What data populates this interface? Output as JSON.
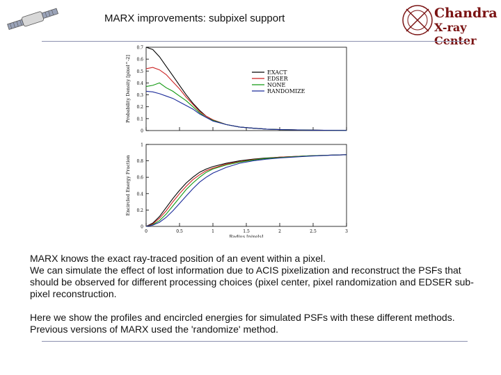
{
  "slide": {
    "title": "MARX improvements: subpixel support",
    "logo": {
      "line1": "Chandra",
      "line2": "X-ray Center"
    }
  },
  "body": {
    "paragraph1": "MARX knows the exact ray-traced position of an event within a pixel.\nWe can simulate the effect of lost information due to ACIS pixelization and reconstruct the PSFs that should be observed for different processing choices (pixel center, pixel randomization and EDSER sub-pixel reconstruction.",
    "paragraph2": "Here we show the profiles and encircled energies for simulated PSFs with these different methods.  Previous versions of MARX used the 'randomize' method."
  },
  "colors": {
    "rule": "#8a8fae",
    "logo_text": "#7a1313",
    "EXACT": "#000000",
    "EDSER": "#cc2222",
    "NONE": "#119911",
    "RANDOMIZE": "#1a2a99"
  },
  "chart_data": [
    {
      "type": "line",
      "ylabel": "Probability Density [pixel^-2]",
      "xlabel": "",
      "xlim": [
        0,
        3
      ],
      "ylim": [
        0,
        0.7
      ],
      "yticks": [
        "0",
        "0.1",
        "0.2",
        "0.3",
        "0.4",
        "0.5",
        "0.6",
        "0.7"
      ],
      "legend_position": "upper-right",
      "legend": [
        "EXACT",
        "EDSER",
        "NONE",
        "RANDOMIZE"
      ],
      "x": [
        0,
        0.1,
        0.2,
        0.3,
        0.4,
        0.5,
        0.6,
        0.7,
        0.8,
        0.9,
        1.0,
        1.2,
        1.4,
        1.6,
        1.8,
        2.0,
        2.4,
        2.8,
        3.0
      ],
      "series": [
        {
          "name": "EXACT",
          "values": [
            0.7,
            0.68,
            0.62,
            0.54,
            0.46,
            0.38,
            0.3,
            0.23,
            0.17,
            0.12,
            0.09,
            0.05,
            0.03,
            0.02,
            0.012,
            0.008,
            0.004,
            0.002,
            0.001
          ]
        },
        {
          "name": "EDSER",
          "values": [
            0.52,
            0.53,
            0.51,
            0.47,
            0.41,
            0.35,
            0.28,
            0.22,
            0.16,
            0.12,
            0.09,
            0.05,
            0.03,
            0.02,
            0.012,
            0.008,
            0.004,
            0.002,
            0.001
          ]
        },
        {
          "name": "NONE",
          "values": [
            0.37,
            0.38,
            0.4,
            0.36,
            0.33,
            0.29,
            0.25,
            0.2,
            0.15,
            0.11,
            0.085,
            0.05,
            0.03,
            0.02,
            0.012,
            0.008,
            0.004,
            0.002,
            0.001
          ]
        },
        {
          "name": "RANDOMIZE",
          "values": [
            0.33,
            0.325,
            0.31,
            0.29,
            0.27,
            0.24,
            0.21,
            0.18,
            0.14,
            0.11,
            0.08,
            0.05,
            0.03,
            0.02,
            0.012,
            0.008,
            0.004,
            0.002,
            0.001
          ]
        }
      ]
    },
    {
      "type": "line",
      "ylabel": "Encircled Energy Fraction",
      "xlabel": "Radius [pixels]",
      "xlim": [
        0,
        3
      ],
      "ylim": [
        0,
        1
      ],
      "xticks": [
        "0",
        "0.5",
        "1",
        "1.5",
        "2",
        "2.5",
        "3"
      ],
      "yticks": [
        "0",
        "0.2",
        "0.4",
        "0.6",
        "0.8",
        "1"
      ],
      "x": [
        0,
        0.1,
        0.2,
        0.3,
        0.4,
        0.5,
        0.6,
        0.7,
        0.8,
        0.9,
        1.0,
        1.2,
        1.4,
        1.6,
        1.8,
        2.0,
        2.4,
        2.8,
        3.0
      ],
      "series": [
        {
          "name": "EXACT",
          "values": [
            0,
            0.04,
            0.12,
            0.23,
            0.34,
            0.44,
            0.53,
            0.6,
            0.66,
            0.7,
            0.73,
            0.77,
            0.8,
            0.82,
            0.835,
            0.845,
            0.86,
            0.87,
            0.875
          ]
        },
        {
          "name": "EDSER",
          "values": [
            0,
            0.03,
            0.1,
            0.19,
            0.3,
            0.4,
            0.49,
            0.57,
            0.63,
            0.68,
            0.71,
            0.76,
            0.79,
            0.815,
            0.83,
            0.845,
            0.86,
            0.87,
            0.875
          ]
        },
        {
          "name": "NONE",
          "values": [
            0,
            0.02,
            0.07,
            0.15,
            0.25,
            0.35,
            0.45,
            0.53,
            0.6,
            0.66,
            0.7,
            0.75,
            0.785,
            0.81,
            0.83,
            0.84,
            0.86,
            0.87,
            0.875
          ]
        },
        {
          "name": "RANDOMIZE",
          "values": [
            0,
            0.015,
            0.05,
            0.11,
            0.19,
            0.28,
            0.37,
            0.46,
            0.54,
            0.6,
            0.65,
            0.72,
            0.77,
            0.8,
            0.82,
            0.835,
            0.855,
            0.87,
            0.875
          ]
        }
      ]
    }
  ]
}
